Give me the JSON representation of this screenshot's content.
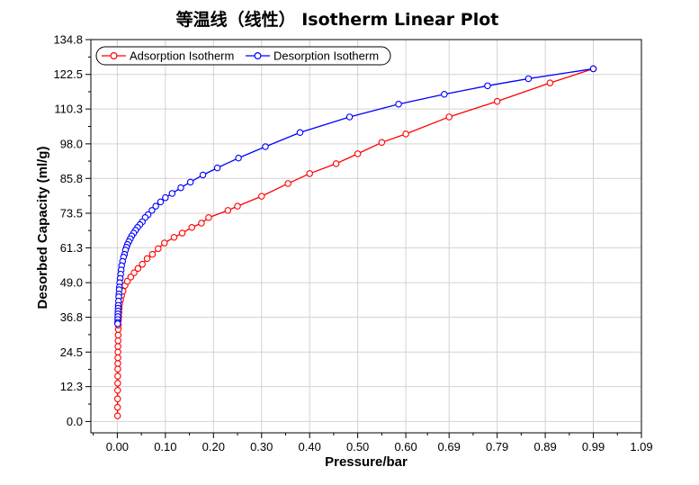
{
  "chart_data": {
    "type": "line",
    "title": "等温线（线性） Isotherm Linear Plot",
    "xlabel": "Pressure/bar",
    "ylabel": "Desorbed Capacity (ml/g)",
    "x_ticks": [
      "0.00",
      "0.10",
      "0.20",
      "0.30",
      "0.40",
      "0.50",
      "0.60",
      "0.69",
      "0.79",
      "0.89",
      "0.99",
      "1.09"
    ],
    "y_ticks": [
      "0.0",
      "12.3",
      "24.5",
      "36.8",
      "49.0",
      "61.3",
      "73.5",
      "85.8",
      "98.0",
      "110.3",
      "122.5",
      "134.8"
    ],
    "xlim": [
      -0.055,
      1.09
    ],
    "ylim": [
      -4.0,
      134.8
    ],
    "grid": true,
    "legend_position": "top-left",
    "series": [
      {
        "name": "Adsorption Isotherm",
        "color": "#ff0000",
        "marker": "circle",
        "x": [
          0.0005,
          0.0005,
          0.0006,
          0.0007,
          0.0008,
          0.0009,
          0.001,
          0.0011,
          0.0012,
          0.0013,
          0.0014,
          0.0016,
          0.0018,
          0.002,
          0.0022,
          0.0025,
          0.003,
          0.0035,
          0.004,
          0.005,
          0.007,
          0.009,
          0.012,
          0.016,
          0.021,
          0.028,
          0.035,
          0.043,
          0.052,
          0.062,
          0.073,
          0.085,
          0.098,
          0.118,
          0.135,
          0.155,
          0.175,
          0.19,
          0.23,
          0.25,
          0.3,
          0.355,
          0.4,
          0.455,
          0.5,
          0.55,
          0.6,
          0.69,
          0.79,
          0.9,
          0.99
        ],
        "y": [
          2.0,
          5.0,
          8.0,
          11.0,
          13.5,
          16.0,
          18.5,
          20.5,
          22.5,
          24.5,
          26.5,
          28.5,
          30.5,
          32.5,
          34.0,
          35.8,
          37.0,
          38.5,
          40.0,
          41.5,
          43.0,
          44.5,
          46.0,
          48.0,
          49.5,
          51.0,
          52.5,
          54.0,
          55.5,
          57.5,
          59.0,
          61.0,
          63.0,
          65.0,
          66.5,
          68.5,
          70.0,
          72.0,
          74.5,
          76.0,
          79.5,
          84.0,
          87.5,
          91.0,
          94.5,
          98.5,
          101.5,
          107.5,
          113.0,
          119.5,
          124.5
        ]
      },
      {
        "name": "Desorption Isotherm",
        "color": "#0000ff",
        "marker": "circle",
        "x": [
          0.99,
          0.855,
          0.77,
          0.68,
          0.585,
          0.483,
          0.38,
          0.308,
          0.252,
          0.208,
          0.178,
          0.152,
          0.132,
          0.114,
          0.1,
          0.09,
          0.08,
          0.072,
          0.064,
          0.058,
          0.052,
          0.047,
          0.042,
          0.038,
          0.034,
          0.03,
          0.027,
          0.024,
          0.021,
          0.019,
          0.017,
          0.015,
          0.013,
          0.011,
          0.009,
          0.008,
          0.007,
          0.006,
          0.005,
          0.0045,
          0.004,
          0.0035,
          0.003,
          0.0025,
          0.002,
          0.0018,
          0.0015,
          0.0013,
          0.0012,
          0.001,
          0.0009,
          0.0008
        ],
        "y": [
          124.5,
          121.0,
          118.5,
          115.5,
          112.0,
          107.5,
          102.0,
          97.0,
          93.0,
          89.5,
          87.0,
          84.5,
          82.5,
          80.5,
          79.0,
          77.5,
          76.0,
          74.5,
          73.0,
          72.0,
          70.5,
          69.5,
          68.5,
          67.5,
          66.5,
          65.5,
          64.5,
          63.5,
          62.5,
          61.5,
          60.5,
          59.0,
          58.0,
          56.5,
          55.0,
          53.5,
          52.0,
          50.5,
          49.0,
          47.5,
          46.5,
          45.0,
          44.0,
          42.5,
          41.0,
          40.0,
          39.0,
          38.0,
          37.0,
          36.0,
          35.0,
          34.5
        ]
      }
    ]
  }
}
